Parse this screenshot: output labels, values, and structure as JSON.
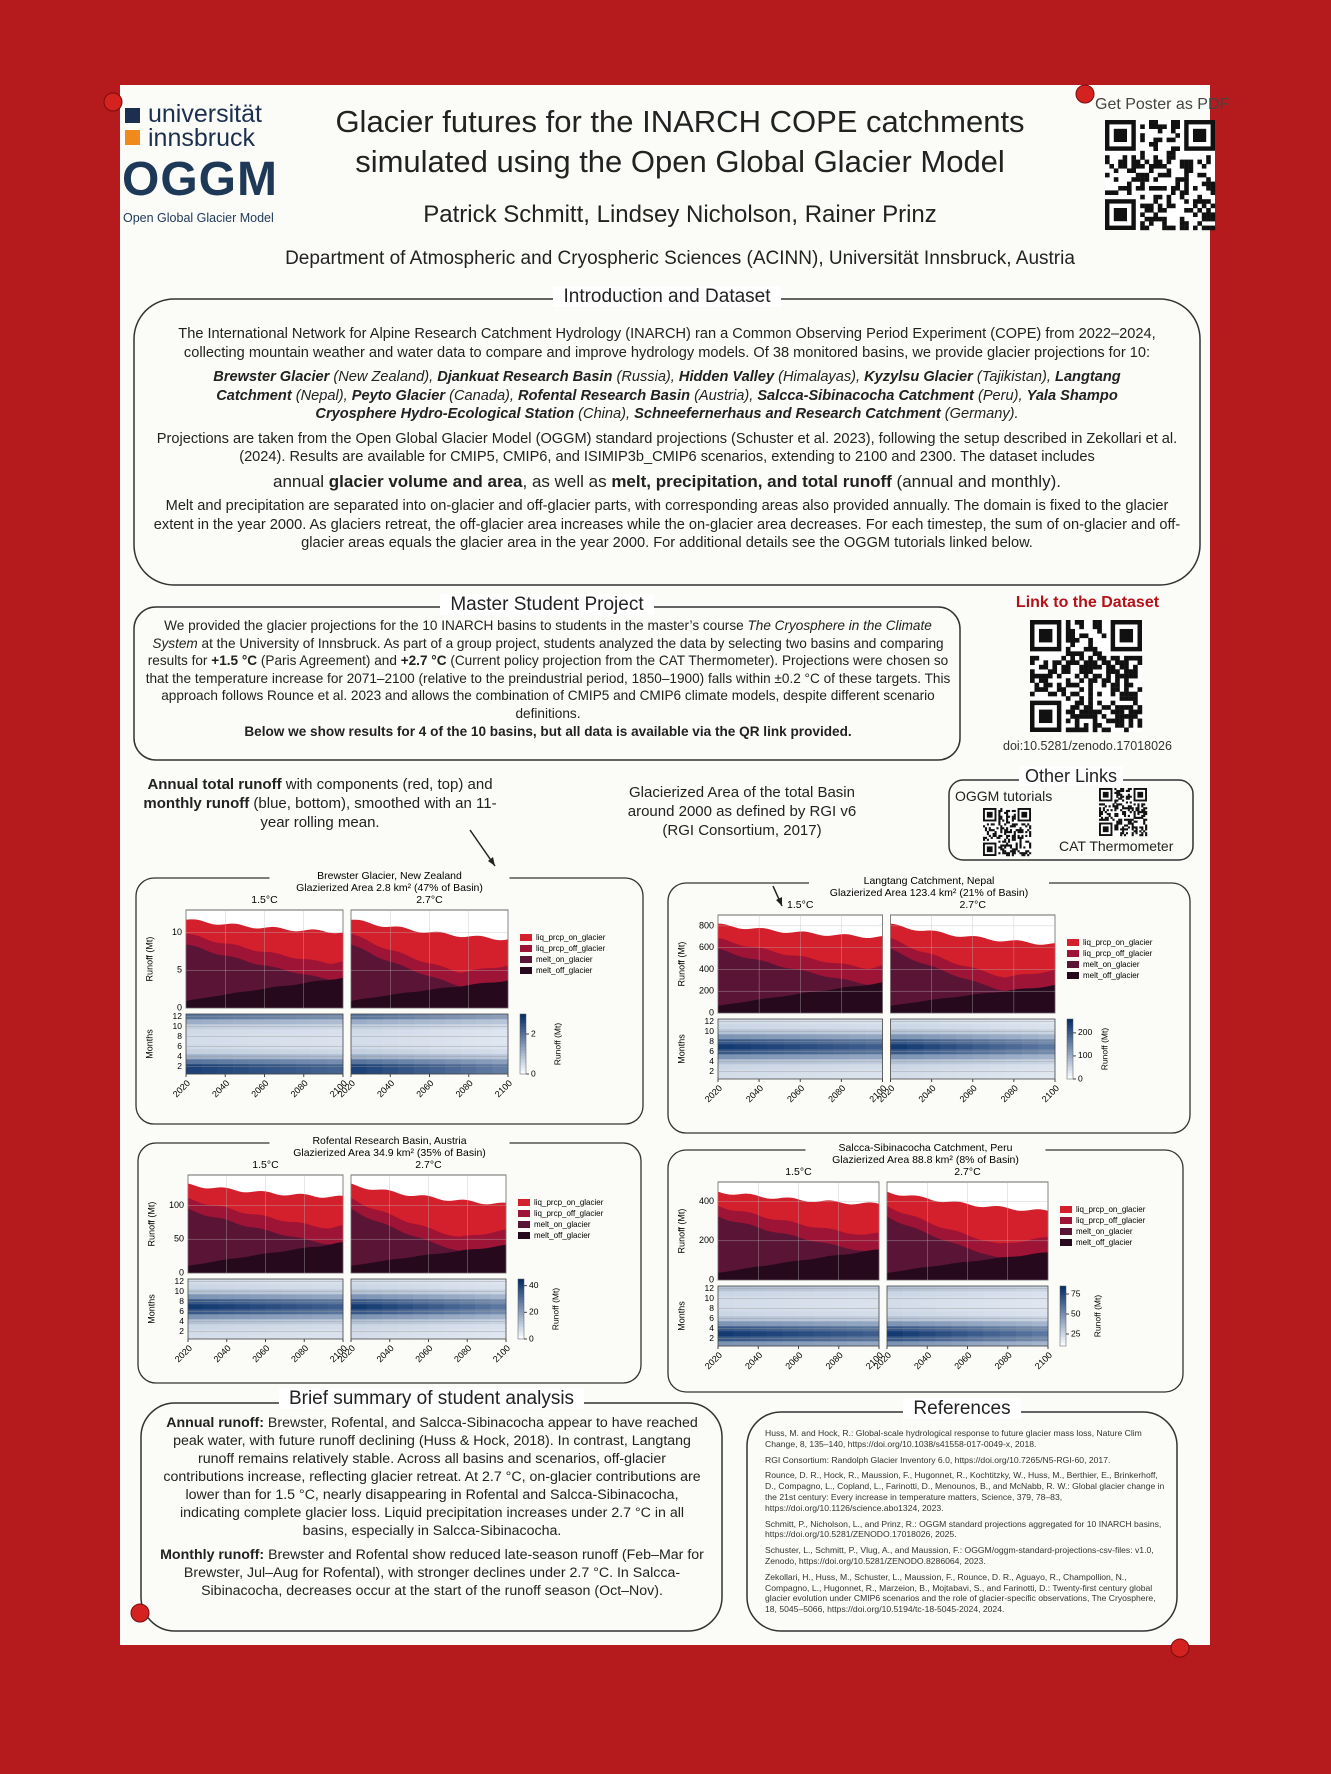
{
  "header": {
    "university": [
      "universität",
      "innsbruck"
    ],
    "logo": "OGGM",
    "logo_subtitle": "Open Global Glacier Model",
    "title": [
      "Glacier futures for the INARCH COPE catchments",
      "simulated using the Open Global Glacier Model"
    ],
    "authors": "Patrick Schmitt, Lindsey Nicholson, Rainer Prinz",
    "affiliation": "Department of Atmospheric and Cryospheric Sciences (ACINN), Universität Innsbruck, Austria",
    "pdf_link": "Get Poster as PDF"
  },
  "intro": {
    "heading": "Introduction and Dataset",
    "lead": "The International Network for Alpine Research Catchment Hydrology (INARCH) ran a Common Observing Period Experiment (COPE) from 2022–2024, collecting mountain weather and water data to compare and improve hydrology models. Of 38 monitored basins, we provide glacier projections for 10:",
    "basins": [
      {
        "name": "Brewster Glacier",
        "place": "(New Zealand),"
      },
      {
        "name": "Djankuat Research Basin",
        "place": "(Russia),"
      },
      {
        "name": "Hidden Valley",
        "place": "(Himalayas),"
      },
      {
        "name": "Kyzylsu Glacier",
        "place": "(Tajikistan),"
      },
      {
        "name": "Langtang Catchment",
        "place": "(Nepal),"
      },
      {
        "name": "Peyto Glacier",
        "place": "(Canada),"
      },
      {
        "name": "Rofental Research Basin",
        "place": "(Austria),"
      },
      {
        "name": "Salcca-Sibinacocha Catchment",
        "place": "(Peru),"
      },
      {
        "name": "Yala Shampo Cryosphere Hydro-Ecological Station",
        "place": "(China),"
      },
      {
        "name": "Schneefernerhaus and Research Catchment",
        "place": "(Germany)."
      }
    ],
    "projections": "Projections are taken from the Open Global Glacier Model (OGGM) standard projections (Schuster et al. 2023), following the setup described in Zekollari et al. (2024). Results are available for CMIP5, CMIP6, and ISIMIP3b_CMIP6 scenarios, extending to 2100 and 2300. The dataset includes",
    "variables": [
      "annual ",
      "glacier volume and area",
      ", as well as ",
      "melt, precipitation, and total runoff",
      " (annual and monthly)."
    ],
    "domain": "Melt and precipitation are separated into on-glacier and off-glacier parts, with corresponding areas also provided annually. The domain is fixed to the glacier extent in the year 2000. As glaciers retreat, the off-glacier area increases while the on-glacier area decreases. For each timestep, the sum of on-glacier and off-glacier areas equals the glacier area in the year 2000. For additional details see the OGGM tutorials linked below."
  },
  "project": {
    "heading": "Master Student Project",
    "text": [
      "We provided the glacier projections for the 10 INARCH basins to students in the master’s course ",
      "The Cryosphere in the Climate System",
      " at the University of Innsbruck. As part of a group project, students analyzed the data by selecting two basins and comparing results for ",
      "+1.5 °C",
      " (Paris Agreement) and ",
      "+2.7 °C",
      " (Current policy projection from the CAT Thermometer). Projections were chosen so that the temperature increase for 2071–2100 (relative to the preindustrial period, 1850–1900) falls within ±0.2 °C of these targets. This approach follows Rounce et al. 2023 and allows the combination of CMIP5 and CMIP6 climate models, despite different scenario definitions."
    ],
    "closing": "Below we show results for 4 of the 10 basins, but all data is available via the QR link provided."
  },
  "dataset_link": {
    "heading": "Link to the Dataset",
    "doi": "doi:10.5281/zenodo.17018026"
  },
  "other_links": {
    "heading": "Other Links",
    "items": [
      "OGGM tutorials",
      "CAT Thermometer"
    ]
  },
  "notes": {
    "runoff": [
      "Annual total runoff",
      " with components (red, top) and ",
      "monthly runoff",
      " (blue, bottom), smoothed with an 11-year rolling mean."
    ],
    "area": "Glacierized Area of the total Basin around 2000 as defined by RGI v6 (RGI Consortium, 2017)"
  },
  "figures": {
    "legend": [
      {
        "name": "liq_prcp_on_glacier",
        "color": "#d41f2c"
      },
      {
        "name": "liq_prcp_off_glacier",
        "color": "#9e1436"
      },
      {
        "name": "melt_on_glacier",
        "color": "#5a1436"
      },
      {
        "name": "melt_off_glacier",
        "color": "#26091c"
      }
    ],
    "scenarios": [
      "1.5°C",
      "2.7°C"
    ],
    "runoff_label": "Runoff (Mt)",
    "months_label": "Months",
    "xlim": [
      2020,
      2100
    ],
    "xticks": [
      2020,
      2040,
      2060,
      2080,
      2100
    ],
    "month_lim": [
      0.5,
      12.5
    ],
    "month_ticks": [
      2,
      4,
      6,
      8,
      10,
      12
    ],
    "panels": [
      {
        "title": "Brewster Glacier, New Zealand",
        "subtitle": "Glazierized Area 2.8 km² (47% of Basin)",
        "ylim": [
          0,
          13
        ],
        "yticks": [
          0,
          5,
          10
        ],
        "cbar_lim": [
          0,
          3
        ],
        "cbar_ticks": [
          0,
          2
        ]
      },
      {
        "title": "Langtang Catchment, Nepal",
        "subtitle": "Glazierized Area 123.4 km² (21% of Basin)",
        "ylim": [
          0,
          900
        ],
        "yticks": [
          0,
          200,
          400,
          600,
          800
        ],
        "cbar_lim": [
          0,
          260
        ],
        "cbar_ticks": [
          0,
          100,
          200
        ]
      },
      {
        "title": "Rofental Research Basin, Austria",
        "subtitle": "Glazierized Area 34.9 km² (35% of Basin)",
        "ylim": [
          0,
          145
        ],
        "yticks": [
          0,
          50,
          100
        ],
        "cbar_lim": [
          0,
          45
        ],
        "cbar_ticks": [
          0,
          20,
          40
        ]
      },
      {
        "title": "Salcca-Sibinacocha Catchment, Peru",
        "subtitle": "Glazierized Area 88.8 km² (8% of Basin)",
        "ylim": [
          0,
          500
        ],
        "yticks": [
          0,
          200,
          400
        ],
        "cbar_lim": [
          10,
          85
        ],
        "cbar_ticks": [
          25,
          50,
          75
        ]
      }
    ]
  },
  "summary": {
    "heading": "Brief summary of student analysis",
    "paragraphs": [
      {
        "label": "Annual runoff:",
        "text": "Brewster, Rofental, and Salcca-Sibinacocha appear to have reached peak water, with future runoff declining (Huss & Hock, 2018). In contrast, Langtang runoff remains relatively stable. Across all basins and scenarios, off-glacier contributions increase, reflecting glacier retreat. At 2.7 °C, on-glacier contributions are lower than for 1.5 °C, nearly disappearing in Rofental and Salcca-Sibinacocha, indicating complete glacier loss. Liquid precipitation increases under 2.7 °C in all basins, especially in Salcca-Sibinacocha."
      },
      {
        "label": "Monthly runoff:",
        "text": "Brewster and Rofental show reduced late-season runoff (Feb–Mar for Brewster, Jul–Aug for Rofental), with stronger declines under 2.7 °C. In Salcca-Sibinacocha, decreases occur at the start of the runoff season (Oct–Nov)."
      }
    ]
  },
  "references": {
    "heading": "References",
    "items": [
      "Huss, M. and Hock, R.: Global-scale hydrological response to future glacier mass loss, Nature Clim Change, 8, 135–140, https://doi.org/10.1038/s41558-017-0049-x, 2018.",
      "RGI Consortium: Randolph Glacier Inventory 6.0, https://doi.org/10.7265/N5-RGI-60, 2017.",
      "Rounce, D. R., Hock, R., Maussion, F., Hugonnet, R., Kochtitzky, W., Huss, M., Berthier, E., Brinkerhoff, D., Compagno, L., Copland, L., Farinotti, D., Menounos, B., and McNabb, R. W.: Global glacier change in the 21st century: Every increase in temperature matters, Science, 379, 78–83, https://doi.org/10.1126/science.abo1324, 2023.",
      "Schmitt, P., Nicholson, L., and Prinz, R.: OGGM standard projections aggregated for 10 INARCH basins, https://doi.org/10.5281/ZENODO.17018026, 2025.",
      "Schuster, L., Schmitt, P., Vlug, A., and Maussion, F.: OGGM/oggm-standard-projections-csv-files: v1.0, Zenodo, https://doi.org/10.5281/ZENODO.8286064, 2023.",
      "Zekollari, H., Huss, M., Schuster, L., Maussion, F., Rounce, D. R., Aguayo, R., Champollion, N., Compagno, L., Hugonnet, R., Marzeion, B., Mojtabavi, S., and Farinotti, D.: Twenty-first century global glacier evolution under CMIP6 scenarios and the role of glacier-specific observations, The Cryosphere, 18, 5045–5066, https://doi.org/10.5194/tc-18-5045-2024, 2024."
    ]
  }
}
